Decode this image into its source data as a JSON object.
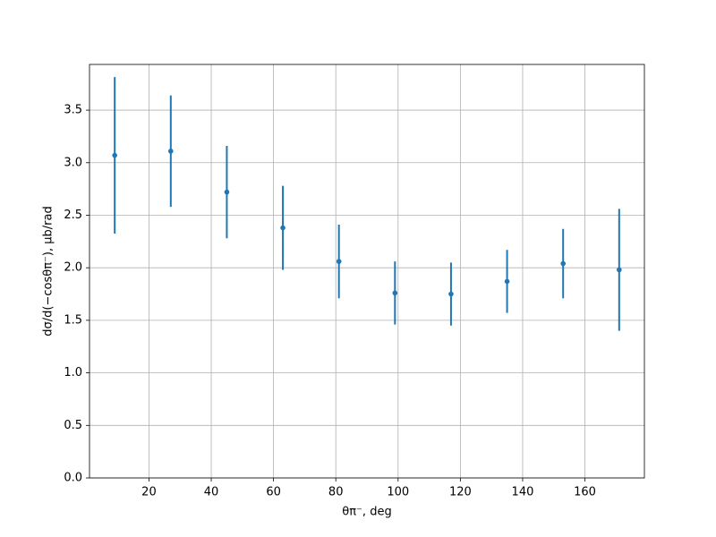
{
  "chart_data": {
    "type": "errorbar",
    "x_label": "θπ⁻, deg",
    "y_label": "dσ/d(−cosθπ⁻), μb/rad",
    "x": [
      9,
      27,
      45,
      63,
      81,
      99,
      117,
      135,
      153,
      171
    ],
    "values": [
      3.07,
      3.11,
      2.72,
      2.38,
      2.06,
      1.76,
      1.75,
      1.87,
      2.04,
      1.98
    ],
    "errors": [
      0.745,
      0.53,
      0.44,
      0.4,
      0.35,
      0.3,
      0.3,
      0.3,
      0.33,
      0.58
    ],
    "color": "#1f77b4",
    "xlim": [
      0.9,
      179.1
    ],
    "ylim": [
      0,
      3.935
    ],
    "xticks": [
      20,
      40,
      60,
      80,
      100,
      120,
      140,
      160
    ],
    "yticks": [
      {
        "value": 0,
        "label": "0.0"
      },
      {
        "value": 0.5,
        "label": "0.5"
      },
      {
        "value": 1,
        "label": "1.0"
      },
      {
        "value": 1.5,
        "label": "1.5"
      },
      {
        "value": 2,
        "label": "2.0"
      },
      {
        "value": 2.5,
        "label": "2.5"
      },
      {
        "value": 3,
        "label": "3.0"
      },
      {
        "value": 3.5,
        "label": "3.5"
      }
    ],
    "grid": true
  }
}
